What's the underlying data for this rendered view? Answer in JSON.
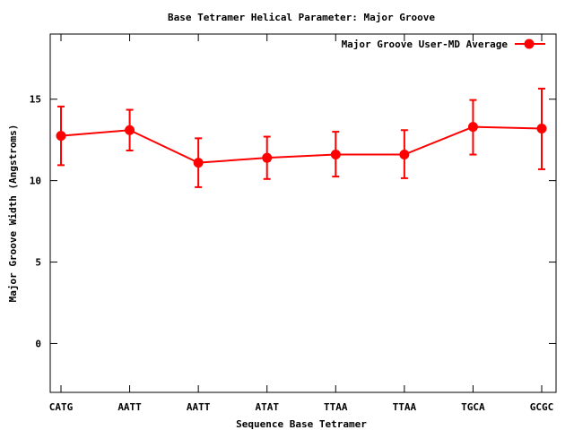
{
  "chart_data": {
    "type": "line",
    "title": "Base Tetramer Helical Parameter: Major Groove",
    "xlabel": "Sequence Base Tetramer",
    "ylabel": "Major Groove Width (Angstroms)",
    "categories": [
      "CATG",
      "AATT",
      "AATT",
      "ATAT",
      "TTAA",
      "TTAA",
      "TGCA",
      "GCGC"
    ],
    "ylim": [
      -3,
      19
    ],
    "yticks": [
      0,
      5,
      10,
      15
    ],
    "grid": false,
    "legend_position": "top-right",
    "colors": {
      "series": "#ff0000",
      "axis": "#000000"
    },
    "series": [
      {
        "name": "Major Groove User-MD Average",
        "values": [
          12.75,
          13.1,
          11.1,
          11.4,
          11.6,
          11.6,
          13.3,
          13.2
        ],
        "error_low": [
          10.95,
          11.85,
          9.6,
          10.1,
          10.25,
          10.15,
          11.6,
          10.7
        ],
        "error_high": [
          14.55,
          14.35,
          12.6,
          12.7,
          13.0,
          13.1,
          14.95,
          15.65
        ]
      }
    ]
  }
}
